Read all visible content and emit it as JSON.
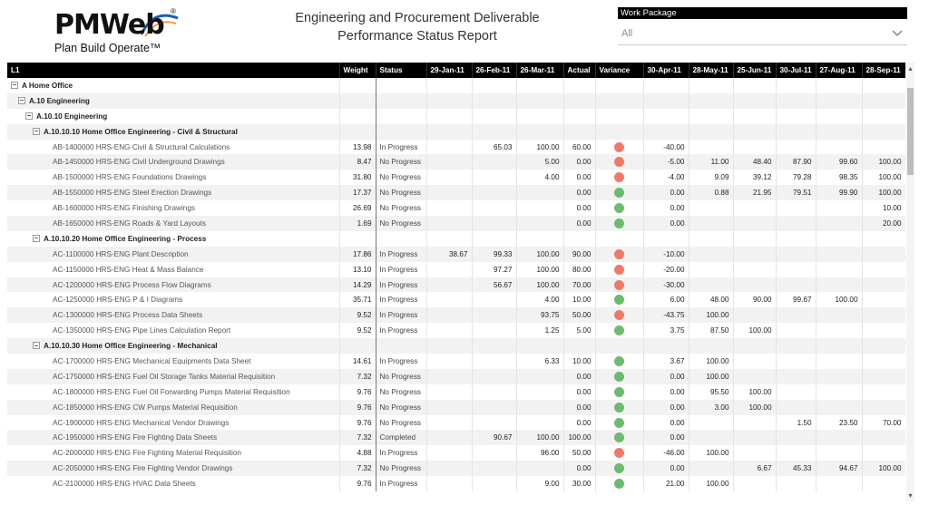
{
  "header": {
    "logo_text": "PMWeb",
    "logo_tagline": "Plan Build Operate™",
    "title_line1": "Engineering and Procurement Deliverable",
    "title_line2": "Performance Status Report"
  },
  "filter": {
    "label": "Work Package",
    "value": "All"
  },
  "colors": {
    "red_dot": "#f07a6a",
    "green_dot": "#6dbb6d",
    "header_bg": "#000000",
    "logo_blue": "#1a5fb4",
    "logo_orange": "#f0a030"
  },
  "table": {
    "columns": [
      "L1",
      "Weight",
      "Status",
      "29-Jan-11",
      "26-Feb-11",
      "26-Mar-11",
      "Actual",
      "Variance",
      "30-Apr-11",
      "28-May-11",
      "25-Jun-11",
      "30-Jul-11",
      "27-Aug-11",
      "28-Sep-11"
    ],
    "rows": [
      {
        "type": "group",
        "level": 0,
        "label": "A Home Office"
      },
      {
        "type": "group",
        "level": 1,
        "label": "A.10 Engineering"
      },
      {
        "type": "group",
        "level": 2,
        "label": "A.10.10 Engineering"
      },
      {
        "type": "group",
        "level": 3,
        "label": "A.10.10.10 Home Office Engineering - Civil & Structural"
      },
      {
        "type": "item",
        "label": "AB-1400000 HRS-ENG Civil & Structural Calculations",
        "weight": "13.98",
        "status": "In Progress",
        "jan": "",
        "feb": "65.03",
        "mar": "100.00",
        "actual": "60.00",
        "dot": "red",
        "variance": "-40.00",
        "apr": "",
        "may": "",
        "jun": "",
        "jul": "",
        "aug": "",
        "sep": ""
      },
      {
        "type": "item",
        "label": "AB-1450000 HRS-ENG Civil Underground Drawings",
        "weight": "8.47",
        "status": "No Progress",
        "jan": "",
        "feb": "",
        "mar": "5.00",
        "actual": "0.00",
        "dot": "red",
        "variance": "-5.00",
        "apr": "11.00",
        "may": "48.40",
        "jun": "87.90",
        "jul": "99.60",
        "aug": "100.00",
        "sep": ""
      },
      {
        "type": "item",
        "label": "AB-1500000 HRS-ENG Foundations Drawings",
        "weight": "31.80",
        "status": "No Progress",
        "jan": "",
        "feb": "",
        "mar": "4.00",
        "actual": "0.00",
        "dot": "red",
        "variance": "-4.00",
        "apr": "9.09",
        "may": "39.12",
        "jun": "79.28",
        "jul": "98.35",
        "aug": "100.00",
        "sep": ""
      },
      {
        "type": "item",
        "label": "AB-1550000 HRS-ENG Steel Erection Drawings",
        "weight": "17.37",
        "status": "No Progress",
        "jan": "",
        "feb": "",
        "mar": "",
        "actual": "0.00",
        "dot": "green",
        "variance": "0.00",
        "apr": "0.88",
        "may": "21.95",
        "jun": "79.51",
        "jul": "99.90",
        "aug": "100.00",
        "sep": ""
      },
      {
        "type": "item",
        "label": "AB-1600000 HRS-ENG Finishing Drawings",
        "weight": "26.69",
        "status": "No Progress",
        "jan": "",
        "feb": "",
        "mar": "",
        "actual": "0.00",
        "dot": "green",
        "variance": "0.00",
        "apr": "",
        "may": "",
        "jun": "",
        "jul": "",
        "aug": "10.00",
        "sep": "100.00"
      },
      {
        "type": "item",
        "label": "AB-1650000 HRS-ENG Roads & Yard Layouts",
        "weight": "1.69",
        "status": "No Progress",
        "jan": "",
        "feb": "",
        "mar": "",
        "actual": "0.00",
        "dot": "green",
        "variance": "0.00",
        "apr": "",
        "may": "",
        "jun": "",
        "jul": "",
        "aug": "20.00",
        "sep": "100.00"
      },
      {
        "type": "group",
        "level": 3,
        "label": "A.10.10.20 Home Office Engineering - Process"
      },
      {
        "type": "item",
        "label": "AC-1100000 HRS-ENG Plant Description",
        "weight": "17.86",
        "status": "In Progress",
        "jan": "38.67",
        "feb": "99.33",
        "mar": "100.00",
        "actual": "90.00",
        "dot": "red",
        "variance": "-10.00",
        "apr": "",
        "may": "",
        "jun": "",
        "jul": "",
        "aug": "",
        "sep": ""
      },
      {
        "type": "item",
        "label": "AC-1150000 HRS-ENG Heat & Mass Balance",
        "weight": "13.10",
        "status": "In Progress",
        "jan": "",
        "feb": "97.27",
        "mar": "100.00",
        "actual": "80.00",
        "dot": "red",
        "variance": "-20.00",
        "apr": "",
        "may": "",
        "jun": "",
        "jul": "",
        "aug": "",
        "sep": ""
      },
      {
        "type": "item",
        "label": "AC-1200000 HRS-ENG Process Flow Diagrams",
        "weight": "14.29",
        "status": "In Progress",
        "jan": "",
        "feb": "56.67",
        "mar": "100.00",
        "actual": "70.00",
        "dot": "red",
        "variance": "-30.00",
        "apr": "",
        "may": "",
        "jun": "",
        "jul": "",
        "aug": "",
        "sep": ""
      },
      {
        "type": "item",
        "label": "AC-1250000 HRS-ENG P & I Diagrams",
        "weight": "35.71",
        "status": "In Progress",
        "jan": "",
        "feb": "",
        "mar": "4.00",
        "actual": "10.00",
        "dot": "green",
        "variance": "6.00",
        "apr": "48.00",
        "may": "90.00",
        "jun": "99.67",
        "jul": "100.00",
        "aug": "",
        "sep": ""
      },
      {
        "type": "item",
        "label": "AC-1300000 HRS-ENG Process Data Sheets",
        "weight": "9.52",
        "status": "In Progress",
        "jan": "",
        "feb": "",
        "mar": "93.75",
        "actual": "50.00",
        "dot": "red",
        "variance": "-43.75",
        "apr": "100.00",
        "may": "",
        "jun": "",
        "jul": "",
        "aug": "",
        "sep": ""
      },
      {
        "type": "item",
        "label": "AC-1350000 HRS-ENG Pipe Lines Calculation Report",
        "weight": "9.52",
        "status": "In Progress",
        "jan": "",
        "feb": "",
        "mar": "1.25",
        "actual": "5.00",
        "dot": "green",
        "variance": "3.75",
        "apr": "87.50",
        "may": "100.00",
        "jun": "",
        "jul": "",
        "aug": "",
        "sep": ""
      },
      {
        "type": "group",
        "level": 3,
        "label": "A.10.10.30 Home Office Engineering - Mechanical"
      },
      {
        "type": "item",
        "label": "AC-1700000 HRS-ENG Mechanical Equipments Data Sheet",
        "weight": "14.61",
        "status": "In Progress",
        "jan": "",
        "feb": "",
        "mar": "6.33",
        "actual": "10.00",
        "dot": "green",
        "variance": "3.67",
        "apr": "100.00",
        "may": "",
        "jun": "",
        "jul": "",
        "aug": "",
        "sep": ""
      },
      {
        "type": "item",
        "label": "AC-1750000 HRS-ENG Fuel Oil Storage Tanks Material Requisition",
        "weight": "7.32",
        "status": "No Progress",
        "jan": "",
        "feb": "",
        "mar": "",
        "actual": "0.00",
        "dot": "green",
        "variance": "0.00",
        "apr": "100.00",
        "may": "",
        "jun": "",
        "jul": "",
        "aug": "",
        "sep": ""
      },
      {
        "type": "item",
        "label": "AC-1800000 HRS-ENG Fuel Oil Forwarding Pumps Material Requisition",
        "weight": "9.76",
        "status": "No Progress",
        "jan": "",
        "feb": "",
        "mar": "",
        "actual": "0.00",
        "dot": "green",
        "variance": "0.00",
        "apr": "95.50",
        "may": "100.00",
        "jun": "",
        "jul": "",
        "aug": "",
        "sep": ""
      },
      {
        "type": "item",
        "label": "AC-1850000 HRS-ENG CW Pumps Material Requisition",
        "weight": "9.76",
        "status": "No Progress",
        "jan": "",
        "feb": "",
        "mar": "",
        "actual": "0.00",
        "dot": "green",
        "variance": "0.00",
        "apr": "3.00",
        "may": "100.00",
        "jun": "",
        "jul": "",
        "aug": "",
        "sep": ""
      },
      {
        "type": "item",
        "label": "AC-1900000 HRS-ENG Mechanical Vendor Drawings",
        "weight": "9.76",
        "status": "No Progress",
        "jan": "",
        "feb": "",
        "mar": "",
        "actual": "0.00",
        "dot": "green",
        "variance": "0.00",
        "apr": "",
        "may": "",
        "jun": "1.50",
        "jul": "23.50",
        "aug": "70.00",
        "sep": ""
      },
      {
        "type": "item",
        "label": "AC-1950000 HRS-ENG Fire Fighting Data Sheets",
        "weight": "7.32",
        "status": "Completed",
        "jan": "",
        "feb": "90.67",
        "mar": "100.00",
        "actual": "100.00",
        "dot": "green",
        "variance": "0.00",
        "apr": "",
        "may": "",
        "jun": "",
        "jul": "",
        "aug": "",
        "sep": ""
      },
      {
        "type": "item",
        "label": "AC-2000000 HRS-ENG Fire Fighting Material Requisition",
        "weight": "4.88",
        "status": "In Progress",
        "jan": "",
        "feb": "",
        "mar": "96.00",
        "actual": "50.00",
        "dot": "red",
        "variance": "-46.00",
        "apr": "100.00",
        "may": "",
        "jun": "",
        "jul": "",
        "aug": "",
        "sep": ""
      },
      {
        "type": "item",
        "label": "AC-2050000 HRS-ENG Fire Fighting Vendor Drawings",
        "weight": "7.32",
        "status": "No Progress",
        "jan": "",
        "feb": "",
        "mar": "",
        "actual": "0.00",
        "dot": "green",
        "variance": "0.00",
        "apr": "",
        "may": "6.67",
        "jun": "45.33",
        "jul": "94.67",
        "aug": "100.00",
        "sep": ""
      },
      {
        "type": "item",
        "label": "AC-2100000 HRS-ENG HVAC Data Sheets",
        "weight": "9.76",
        "status": "In Progress",
        "jan": "",
        "feb": "",
        "mar": "9.00",
        "actual": "30.00",
        "dot": "green",
        "variance": "21.00",
        "apr": "100.00",
        "may": "",
        "jun": "",
        "jul": "",
        "aug": "",
        "sep": ""
      }
    ]
  }
}
